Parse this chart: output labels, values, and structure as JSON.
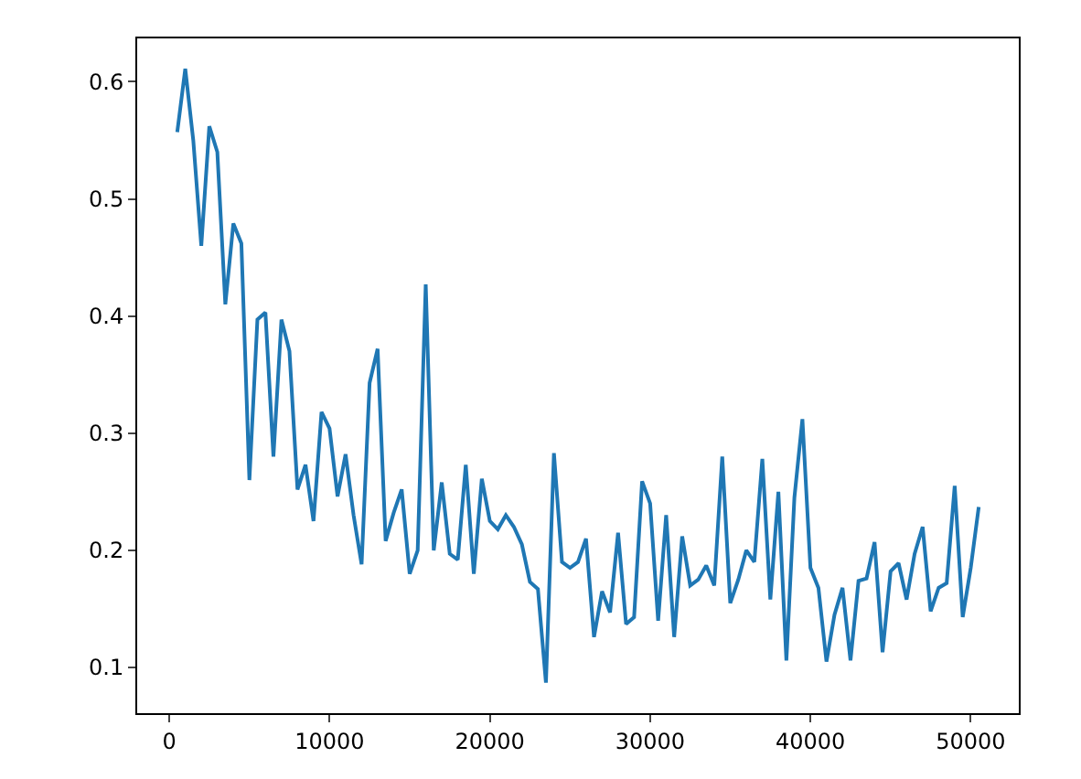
{
  "chart_data": {
    "type": "line",
    "x": [
      500,
      1000,
      1500,
      2000,
      2500,
      3000,
      3500,
      4000,
      4500,
      5000,
      5500,
      6000,
      6500,
      7000,
      7500,
      8000,
      8500,
      9000,
      9500,
      10000,
      10500,
      11000,
      11500,
      12000,
      12500,
      13000,
      13500,
      14000,
      14500,
      15000,
      15500,
      16000,
      16500,
      17000,
      17500,
      18000,
      18500,
      19000,
      19500,
      20000,
      20500,
      21000,
      21500,
      22000,
      22500,
      23000,
      23500,
      24000,
      24500,
      25000,
      25500,
      26000,
      26500,
      27000,
      27500,
      28000,
      28500,
      29000,
      29500,
      30000,
      30500,
      31000,
      31500,
      32000,
      32500,
      33000,
      33500,
      34000,
      34500,
      35000,
      35500,
      36000,
      36500,
      37000,
      37500,
      38000,
      38500,
      39000,
      39500,
      40000,
      40500,
      41000,
      41500,
      42000,
      42500,
      43000,
      43500,
      44000,
      44500,
      45000,
      45500,
      46000,
      46500,
      47000,
      47500,
      48000,
      48500,
      49000,
      49500,
      50000,
      50500
    ],
    "series": [
      {
        "color": "#1f77b4",
        "values": [
          0.557,
          0.611,
          0.55,
          0.46,
          0.562,
          0.54,
          0.41,
          0.479,
          0.462,
          0.26,
          0.397,
          0.403,
          0.28,
          0.397,
          0.37,
          0.252,
          0.273,
          0.225,
          0.318,
          0.304,
          0.246,
          0.282,
          0.23,
          0.188,
          0.343,
          0.372,
          0.208,
          0.232,
          0.252,
          0.18,
          0.2,
          0.427,
          0.2,
          0.258,
          0.197,
          0.192,
          0.273,
          0.18,
          0.261,
          0.225,
          0.218,
          0.23,
          0.22,
          0.205,
          0.173,
          0.167,
          0.087,
          0.283,
          0.19,
          0.185,
          0.19,
          0.21,
          0.126,
          0.165,
          0.147,
          0.215,
          0.137,
          0.143,
          0.259,
          0.24,
          0.14,
          0.23,
          0.126,
          0.212,
          0.17,
          0.175,
          0.187,
          0.17,
          0.28,
          0.155,
          0.175,
          0.2,
          0.19,
          0.278,
          0.158,
          0.25,
          0.106,
          0.245,
          0.312,
          0.185,
          0.168,
          0.105,
          0.145,
          0.168,
          0.106,
          0.174,
          0.176,
          0.207,
          0.113,
          0.182,
          0.189,
          0.158,
          0.197,
          0.22,
          0.148,
          0.168,
          0.172,
          0.255,
          0.143,
          0.185,
          0.237
        ]
      }
    ],
    "xlim": [
      -2000,
      53000
    ],
    "xticks": [
      0,
      10000,
      20000,
      30000,
      40000,
      50000
    ],
    "ylim": [
      0.061,
      0.637
    ],
    "yticks": [
      0.1,
      0.2,
      0.3,
      0.4,
      0.5,
      0.6
    ],
    "grid": false
  }
}
